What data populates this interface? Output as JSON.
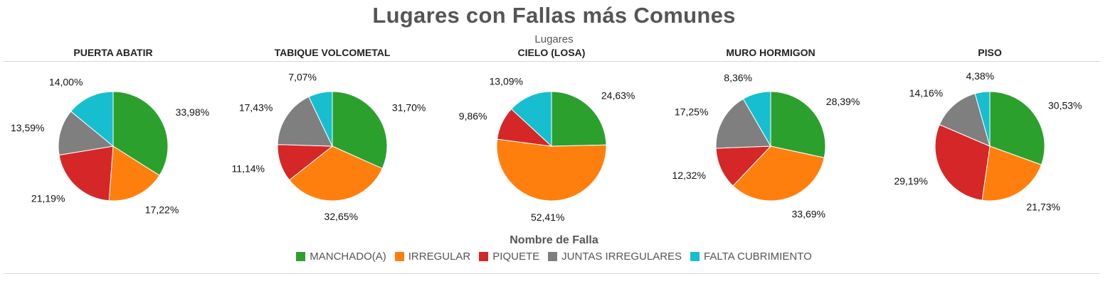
{
  "chart_data": {
    "type": "pie",
    "title": "Lugares con Fallas más Comunes",
    "facet_header": "Lugares",
    "legend_title": "Nombre de Falla",
    "legend_placement": "bottom",
    "series": [
      {
        "name": "MANCHADO(A)",
        "color": "#2ca02c"
      },
      {
        "name": "IRREGULAR",
        "color": "#ff7f0e"
      },
      {
        "name": "PIQUETE",
        "color": "#d62728"
      },
      {
        "name": "JUNTAS IRREGULARES",
        "color": "#7f7f7f"
      },
      {
        "name": "FALTA CUBRIMIENTO",
        "color": "#17becf"
      }
    ],
    "charts": [
      {
        "label": "PUERTA ABATIR",
        "values": [
          33.98,
          17.22,
          21.19,
          13.59,
          14.0
        ],
        "value_labels": [
          "33,98%",
          "17,22%",
          "21,19%",
          "13,59%",
          "14,00%"
        ]
      },
      {
        "label": "TABIQUE VOLCOMETAL",
        "values": [
          31.7,
          32.65,
          11.14,
          17.43,
          7.07
        ],
        "value_labels": [
          "31,70%",
          "32,65%",
          "11,14%",
          "17,43%",
          "7,07%"
        ]
      },
      {
        "label": "CIELO (LOSA)",
        "values": [
          24.63,
          52.41,
          9.86,
          0,
          13.09
        ],
        "value_labels": [
          "24,63%",
          "52,41%",
          "9,86%",
          "",
          "13,09%"
        ]
      },
      {
        "label": "MURO HORMIGON",
        "values": [
          28.39,
          33.69,
          12.32,
          17.25,
          8.36
        ],
        "value_labels": [
          "28,39%",
          "33,69%",
          "12,32%",
          "17,25%",
          "8,36%"
        ]
      },
      {
        "label": "PISO",
        "values": [
          30.53,
          21.73,
          29.19,
          14.16,
          4.38
        ],
        "value_labels": [
          "30,53%",
          "21,73%",
          "29,19%",
          "14,16%",
          "4,38%"
        ]
      }
    ]
  }
}
